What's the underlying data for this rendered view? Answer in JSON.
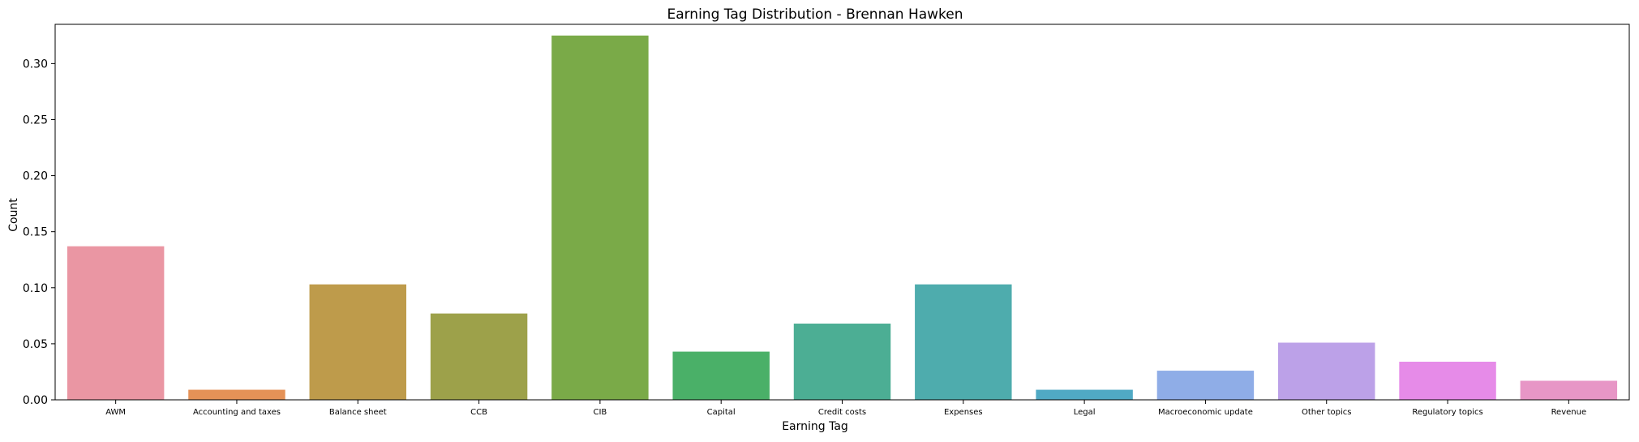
{
  "chart_data": {
    "type": "bar",
    "title": "Earning Tag Distribution - Brennan Hawken",
    "xlabel": "Earning Tag",
    "ylabel": "Count",
    "ylim": [
      0,
      0.335
    ],
    "yticks": [
      0.0,
      0.05,
      0.1,
      0.15,
      0.2,
      0.25,
      0.3
    ],
    "ytick_labels": [
      "0.00",
      "0.05",
      "0.10",
      "0.15",
      "0.20",
      "0.25",
      "0.30"
    ],
    "grid": false,
    "legend": "none",
    "categories": [
      "AWM",
      "Accounting and taxes",
      "Balance sheet",
      "CCB",
      "CIB",
      "Capital",
      "Credit costs",
      "Expenses",
      "Legal",
      "Macroeconomic update",
      "Other topics",
      "Regulatory topics",
      "Revenue"
    ],
    "values": [
      0.137,
      0.009,
      0.103,
      0.077,
      0.325,
      0.043,
      0.068,
      0.103,
      0.009,
      0.026,
      0.051,
      0.034,
      0.017
    ],
    "colors": [
      "#ea96a3",
      "#e59257",
      "#be9b4b",
      "#9da14a",
      "#7aaa48",
      "#4ab068",
      "#4cae94",
      "#4eacad",
      "#50a9c4",
      "#8fade7",
      "#bca1e8",
      "#e68be8",
      "#e796c6"
    ]
  }
}
